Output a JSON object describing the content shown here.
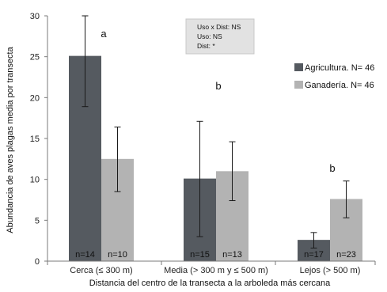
{
  "chart_data": {
    "type": "bar",
    "xlabel": "Distancia del centro de la transecta a la arboleda más cercana",
    "ylabel": "Abundancia de aves plagas media por transecta",
    "ylim": [
      0,
      30
    ],
    "yticks": [
      0,
      5,
      10,
      15,
      20,
      25,
      30
    ],
    "grid": false,
    "legend_position": "right",
    "categories": [
      "Cerca (≤ 300 m)",
      "Media (> 300 m y  ≤ 500 m)",
      "Lejos (> 500 m)"
    ],
    "series": [
      {
        "name": "Agricultura. N= 46",
        "color": "#555a60",
        "values": [
          25.1,
          10.1,
          2.6
        ],
        "error_low": [
          18.9,
          3.0,
          1.6
        ],
        "error_high": [
          30.0,
          17.1,
          3.5
        ],
        "n_labels": [
          "n=14",
          "n=15",
          "n=17"
        ]
      },
      {
        "name": "Ganadería. N= 46",
        "color": "#b3b3b3",
        "values": [
          12.5,
          11.0,
          7.6
        ],
        "error_low": [
          8.5,
          7.4,
          5.3
        ],
        "error_high": [
          16.4,
          14.6,
          9.8
        ],
        "n_labels": [
          "n=10",
          "n=13",
          "n=23"
        ]
      }
    ],
    "significance_letters": [
      "a",
      "b",
      "b"
    ],
    "stats_box": [
      "Uso x Dist: NS",
      "Uso: NS",
      "Dist: *"
    ]
  }
}
